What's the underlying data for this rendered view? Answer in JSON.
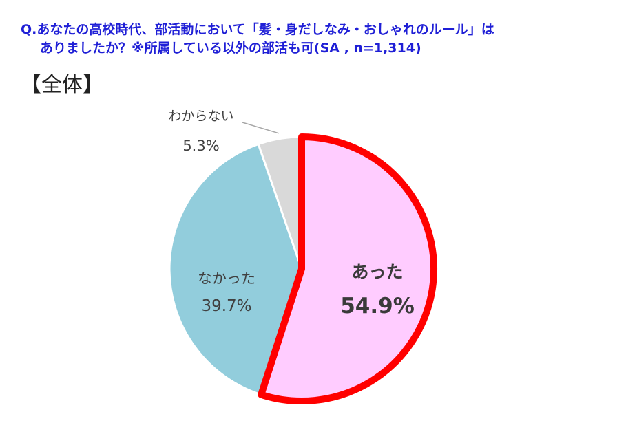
{
  "question": {
    "line1": "Q.あなたの高校時代、部活動において「髪・身だしなみ・おしゃれのルール」は",
    "line2": "ありましたか？※所属している以外の部活も可(SA , n=1,314)"
  },
  "section_label": "【全体】",
  "chart_data": {
    "type": "pie",
    "title": "",
    "slices": [
      {
        "label": "あった",
        "value": 54.9,
        "value_text": "54.9%",
        "color": "#ffccff",
        "highlight_color": "#ff0000"
      },
      {
        "label": "なかった",
        "value": 39.7,
        "value_text": "39.7%",
        "color": "#92cddc"
      },
      {
        "label": "わからない",
        "value": 5.3,
        "value_text": "5.3%",
        "color": "#d9d9d9"
      }
    ]
  }
}
